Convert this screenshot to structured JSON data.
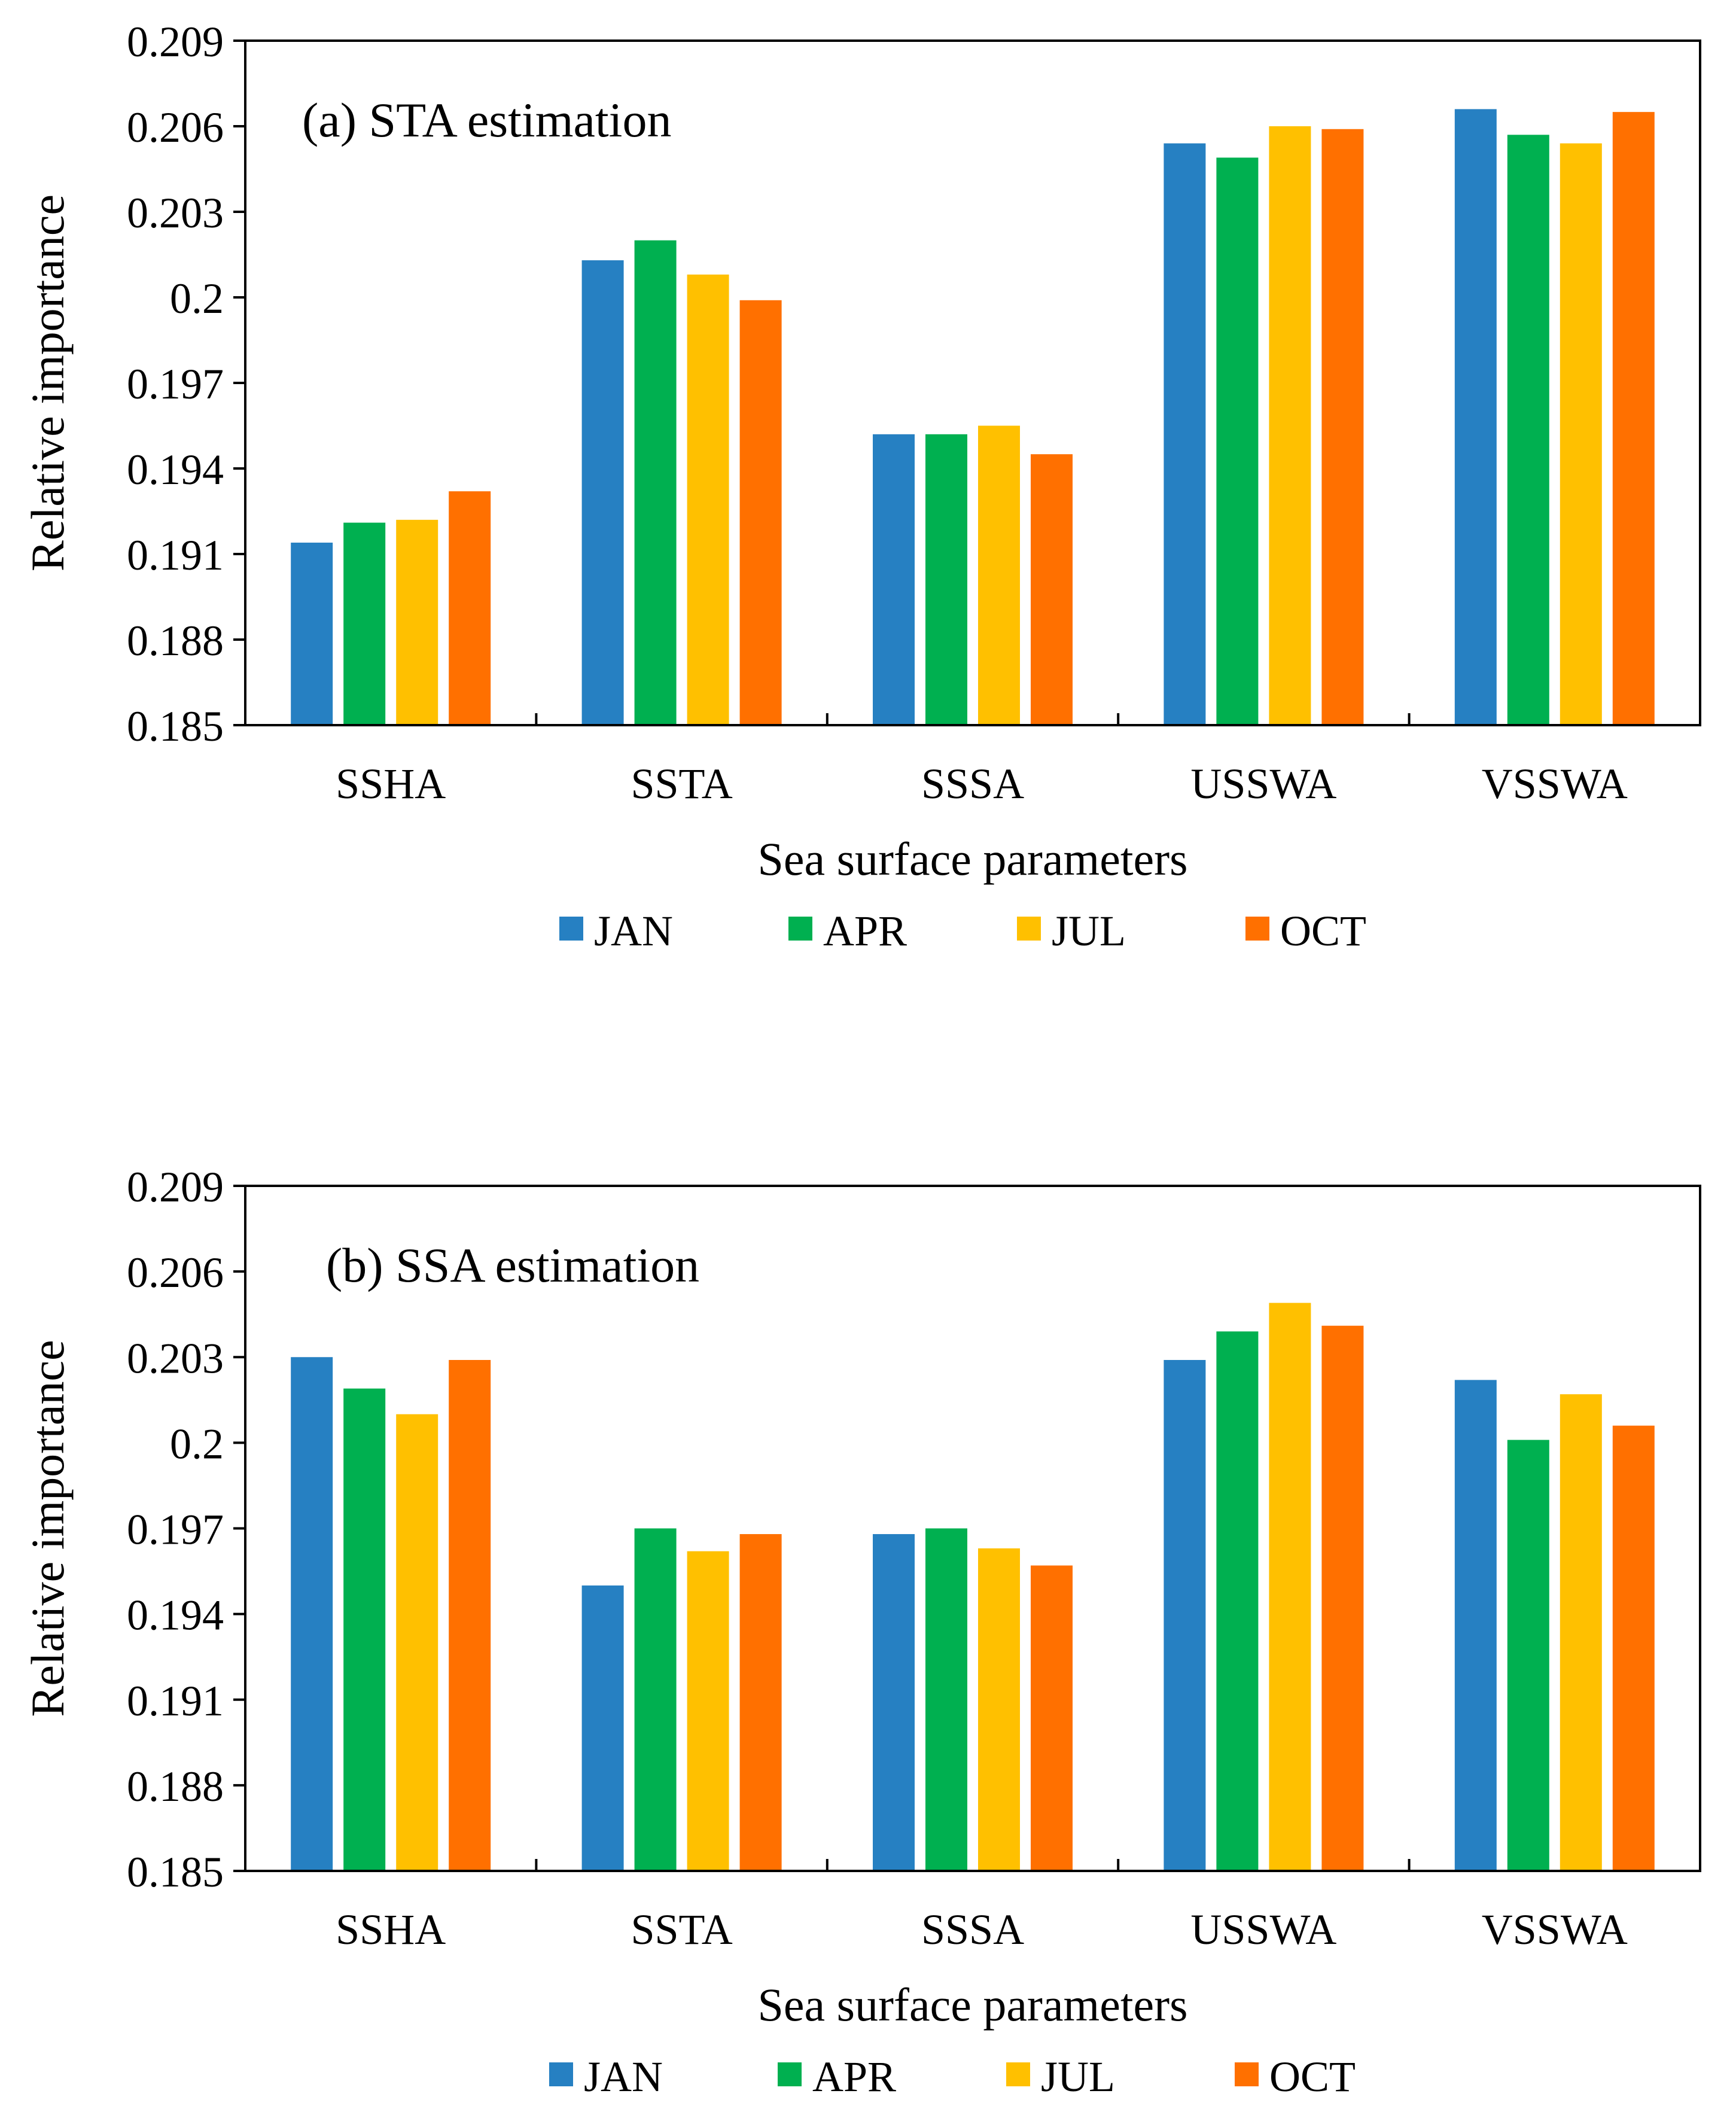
{
  "chart_data": [
    {
      "type": "bar",
      "title": "(a) STA estimation",
      "xlabel": "Sea surface parameters",
      "ylabel": "Relative importance",
      "ylim": [
        0.185,
        0.209
      ],
      "yticks": [
        "0.185",
        "0.188",
        "0.191",
        "0.194",
        "0.197",
        "0.2",
        "0.203",
        "0.206",
        "0.209"
      ],
      "categories": [
        "SSHA",
        "SSTA",
        "SSSA",
        "USSWA",
        "VSSWA"
      ],
      "series": [
        {
          "name": "JAN",
          "color": "#2680C2",
          "values": [
            0.1914,
            0.2013,
            0.1952,
            0.2054,
            0.2066
          ]
        },
        {
          "name": "APR",
          "color": "#00B050",
          "values": [
            0.1921,
            0.202,
            0.1952,
            0.2049,
            0.2057
          ]
        },
        {
          "name": "JUL",
          "color": "#FFC000",
          "values": [
            0.1922,
            0.2008,
            0.1955,
            0.206,
            0.2054
          ]
        },
        {
          "name": "OCT",
          "color": "#FF7000",
          "values": [
            0.1932,
            0.1999,
            0.1945,
            0.2059,
            0.2065
          ]
        }
      ],
      "legend_position": "bottom",
      "grid": false
    },
    {
      "type": "bar",
      "title": "(b) SSA estimation",
      "xlabel": "Sea surface parameters",
      "ylabel": "Relative importance",
      "ylim": [
        0.185,
        0.209
      ],
      "yticks": [
        "0.185",
        "0.188",
        "0.191",
        "0.194",
        "0.197",
        "0.2",
        "0.203",
        "0.206",
        "0.209"
      ],
      "categories": [
        "SSHA",
        "SSTA",
        "SSSA",
        "USSWA",
        "VSSWA"
      ],
      "series": [
        {
          "name": "JAN",
          "color": "#2680C2",
          "values": [
            0.203,
            0.195,
            0.1968,
            0.2029,
            0.2022
          ]
        },
        {
          "name": "APR",
          "color": "#00B050",
          "values": [
            0.2019,
            0.197,
            0.197,
            0.2039,
            0.2001
          ]
        },
        {
          "name": "JUL",
          "color": "#FFC000",
          "values": [
            0.201,
            0.1962,
            0.1963,
            0.2049,
            0.2017
          ]
        },
        {
          "name": "OCT",
          "color": "#FF7000",
          "values": [
            0.2029,
            0.1968,
            0.1957,
            0.2041,
            0.2006
          ]
        }
      ],
      "legend_position": "bottom",
      "grid": false
    }
  ]
}
